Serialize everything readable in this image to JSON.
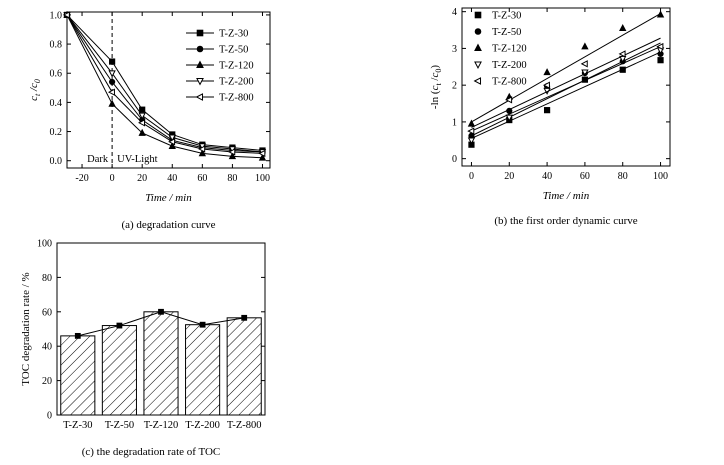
{
  "chart_data": [
    {
      "type": "line",
      "caption": "(a) degradation curve",
      "xlabel": "Time / min",
      "ylabel": "c_t / c_0",
      "xlim": [
        -30,
        105
      ],
      "ylim": [
        -0.05,
        1.02
      ],
      "xticks": [
        -20,
        0,
        20,
        40,
        60,
        80,
        100
      ],
      "xtick_labels": [
        "-20",
        "0",
        "20",
        "40",
        "60",
        "80",
        "100"
      ],
      "yticks": [
        0.0,
        0.2,
        0.4,
        0.6,
        0.8,
        1.0
      ],
      "ytick_labels": [
        "0.0",
        "0.2",
        "0.4",
        "0.6",
        "0.8",
        "1.0"
      ],
      "annotations": [
        "Dark",
        "UV-Light"
      ],
      "legend_position": "top-right",
      "series": [
        {
          "name": "T-Z-30",
          "marker": "square",
          "x": [
            -30,
            0,
            20,
            40,
            60,
            80,
            100
          ],
          "values": [
            1.0,
            0.68,
            0.35,
            0.18,
            0.11,
            0.09,
            0.07
          ]
        },
        {
          "name": "T-Z-50",
          "marker": "circle",
          "x": [
            -30,
            0,
            20,
            40,
            60,
            80,
            100
          ],
          "values": [
            1.0,
            0.54,
            0.28,
            0.14,
            0.09,
            0.07,
            0.06
          ]
        },
        {
          "name": "T-Z-120",
          "marker": "triangle",
          "x": [
            -30,
            0,
            20,
            40,
            60,
            80,
            100
          ],
          "values": [
            1.0,
            0.39,
            0.19,
            0.1,
            0.05,
            0.03,
            0.02
          ]
        },
        {
          "name": "T-Z-200",
          "marker": "triangle-down-open",
          "x": [
            -30,
            0,
            20,
            40,
            60,
            80,
            100
          ],
          "values": [
            1.0,
            0.6,
            0.31,
            0.16,
            0.1,
            0.08,
            0.06
          ]
        },
        {
          "name": "T-Z-800",
          "marker": "triangle-left-open",
          "x": [
            -30,
            0,
            20,
            40,
            60,
            80,
            100
          ],
          "values": [
            1.0,
            0.47,
            0.26,
            0.13,
            0.08,
            0.06,
            0.05
          ]
        }
      ]
    },
    {
      "type": "scatter",
      "caption": "(b) the first order dynamic curve",
      "xlabel": "Time / min",
      "ylabel": "-ln (c_t /c_0)",
      "xlim": [
        -5,
        105
      ],
      "ylim": [
        -0.2,
        4.1
      ],
      "xticks": [
        0,
        20,
        40,
        60,
        80,
        100
      ],
      "xtick_labels": [
        "0",
        "20",
        "40",
        "60",
        "80",
        "100"
      ],
      "yticks": [
        0,
        1,
        2,
        3,
        4
      ],
      "ytick_labels": [
        "0",
        "1",
        "2",
        "3",
        "4"
      ],
      "legend_position": "top-left",
      "series": [
        {
          "name": "T-Z-30",
          "marker": "square",
          "x": [
            0,
            20,
            40,
            60,
            80,
            100
          ],
          "values": [
            0.38,
            1.05,
            1.32,
            2.15,
            2.42,
            2.68
          ],
          "fit": [
            0.55,
            2.9
          ]
        },
        {
          "name": "T-Z-50",
          "marker": "circle",
          "x": [
            0,
            20,
            40,
            60,
            80,
            100
          ],
          "values": [
            0.62,
            1.3,
            1.97,
            2.33,
            2.65,
            2.85
          ],
          "fit": [
            0.75,
            3.05
          ]
        },
        {
          "name": "T-Z-120",
          "marker": "triangle",
          "x": [
            0,
            20,
            40,
            60,
            80,
            100
          ],
          "values": [
            0.95,
            1.68,
            2.35,
            3.05,
            3.55,
            3.92
          ],
          "fit": [
            1.0,
            3.95
          ]
        },
        {
          "name": "T-Z-200",
          "marker": "triangle-down-open",
          "x": [
            0,
            20,
            40,
            60,
            80,
            100
          ],
          "values": [
            0.5,
            1.12,
            1.85,
            2.35,
            2.72,
            2.95
          ],
          "fit": [
            0.62,
            3.15
          ]
        },
        {
          "name": "T-Z-800",
          "marker": "triangle-left-open",
          "x": [
            0,
            20,
            40,
            60,
            80,
            100
          ],
          "values": [
            0.75,
            1.6,
            2.0,
            2.58,
            2.85,
            3.05
          ],
          "fit": [
            0.85,
            3.28
          ]
        }
      ]
    },
    {
      "type": "bar",
      "caption": "(c) the degradation rate of TOC",
      "xlabel": "",
      "ylabel": "TOC degradation rate / %",
      "ylim": [
        0,
        100
      ],
      "yticks": [
        0,
        20,
        40,
        60,
        80,
        100
      ],
      "ytick_labels": [
        "0",
        "20",
        "40",
        "60",
        "80",
        "100"
      ],
      "categories": [
        "T-Z-30",
        "T-Z-50",
        "T-Z-120",
        "T-Z-200",
        "T-Z-800"
      ],
      "values": [
        46,
        52,
        60,
        52.5,
        56.5
      ],
      "bar_fill": "hatched",
      "overlay_line": true
    }
  ]
}
